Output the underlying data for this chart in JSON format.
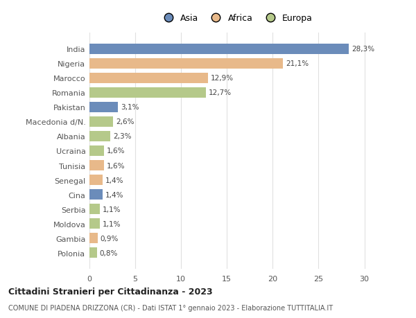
{
  "categories": [
    "Polonia",
    "Gambia",
    "Moldova",
    "Serbia",
    "Cina",
    "Senegal",
    "Tunisia",
    "Ucraina",
    "Albania",
    "Macedonia d/N.",
    "Pakistan",
    "Romania",
    "Marocco",
    "Nigeria",
    "India"
  ],
  "values": [
    0.8,
    0.9,
    1.1,
    1.1,
    1.4,
    1.4,
    1.6,
    1.6,
    2.3,
    2.6,
    3.1,
    12.7,
    12.9,
    21.1,
    28.3
  ],
  "labels": [
    "0,8%",
    "0,9%",
    "1,1%",
    "1,1%",
    "1,4%",
    "1,4%",
    "1,6%",
    "1,6%",
    "2,3%",
    "2,6%",
    "3,1%",
    "12,7%",
    "12,9%",
    "21,1%",
    "28,3%"
  ],
  "continents": [
    "Europa",
    "Africa",
    "Europa",
    "Europa",
    "Asia",
    "Africa",
    "Africa",
    "Europa",
    "Europa",
    "Europa",
    "Asia",
    "Europa",
    "Africa",
    "Africa",
    "Asia"
  ],
  "colors": {
    "Asia": "#6b8cba",
    "Africa": "#e8b98a",
    "Europa": "#b5c98a"
  },
  "legend_labels": [
    "Asia",
    "Africa",
    "Europa"
  ],
  "title1": "Cittadini Stranieri per Cittadinanza - 2023",
  "title2": "COMUNE DI PIADENA DRIZZONA (CR) - Dati ISTAT 1° gennaio 2023 - Elaborazione TUTTITALIA.IT",
  "xlim": [
    0,
    32
  ],
  "xticks": [
    0,
    5,
    10,
    15,
    20,
    25,
    30
  ],
  "background_color": "#ffffff",
  "grid_color": "#e0e0e0"
}
